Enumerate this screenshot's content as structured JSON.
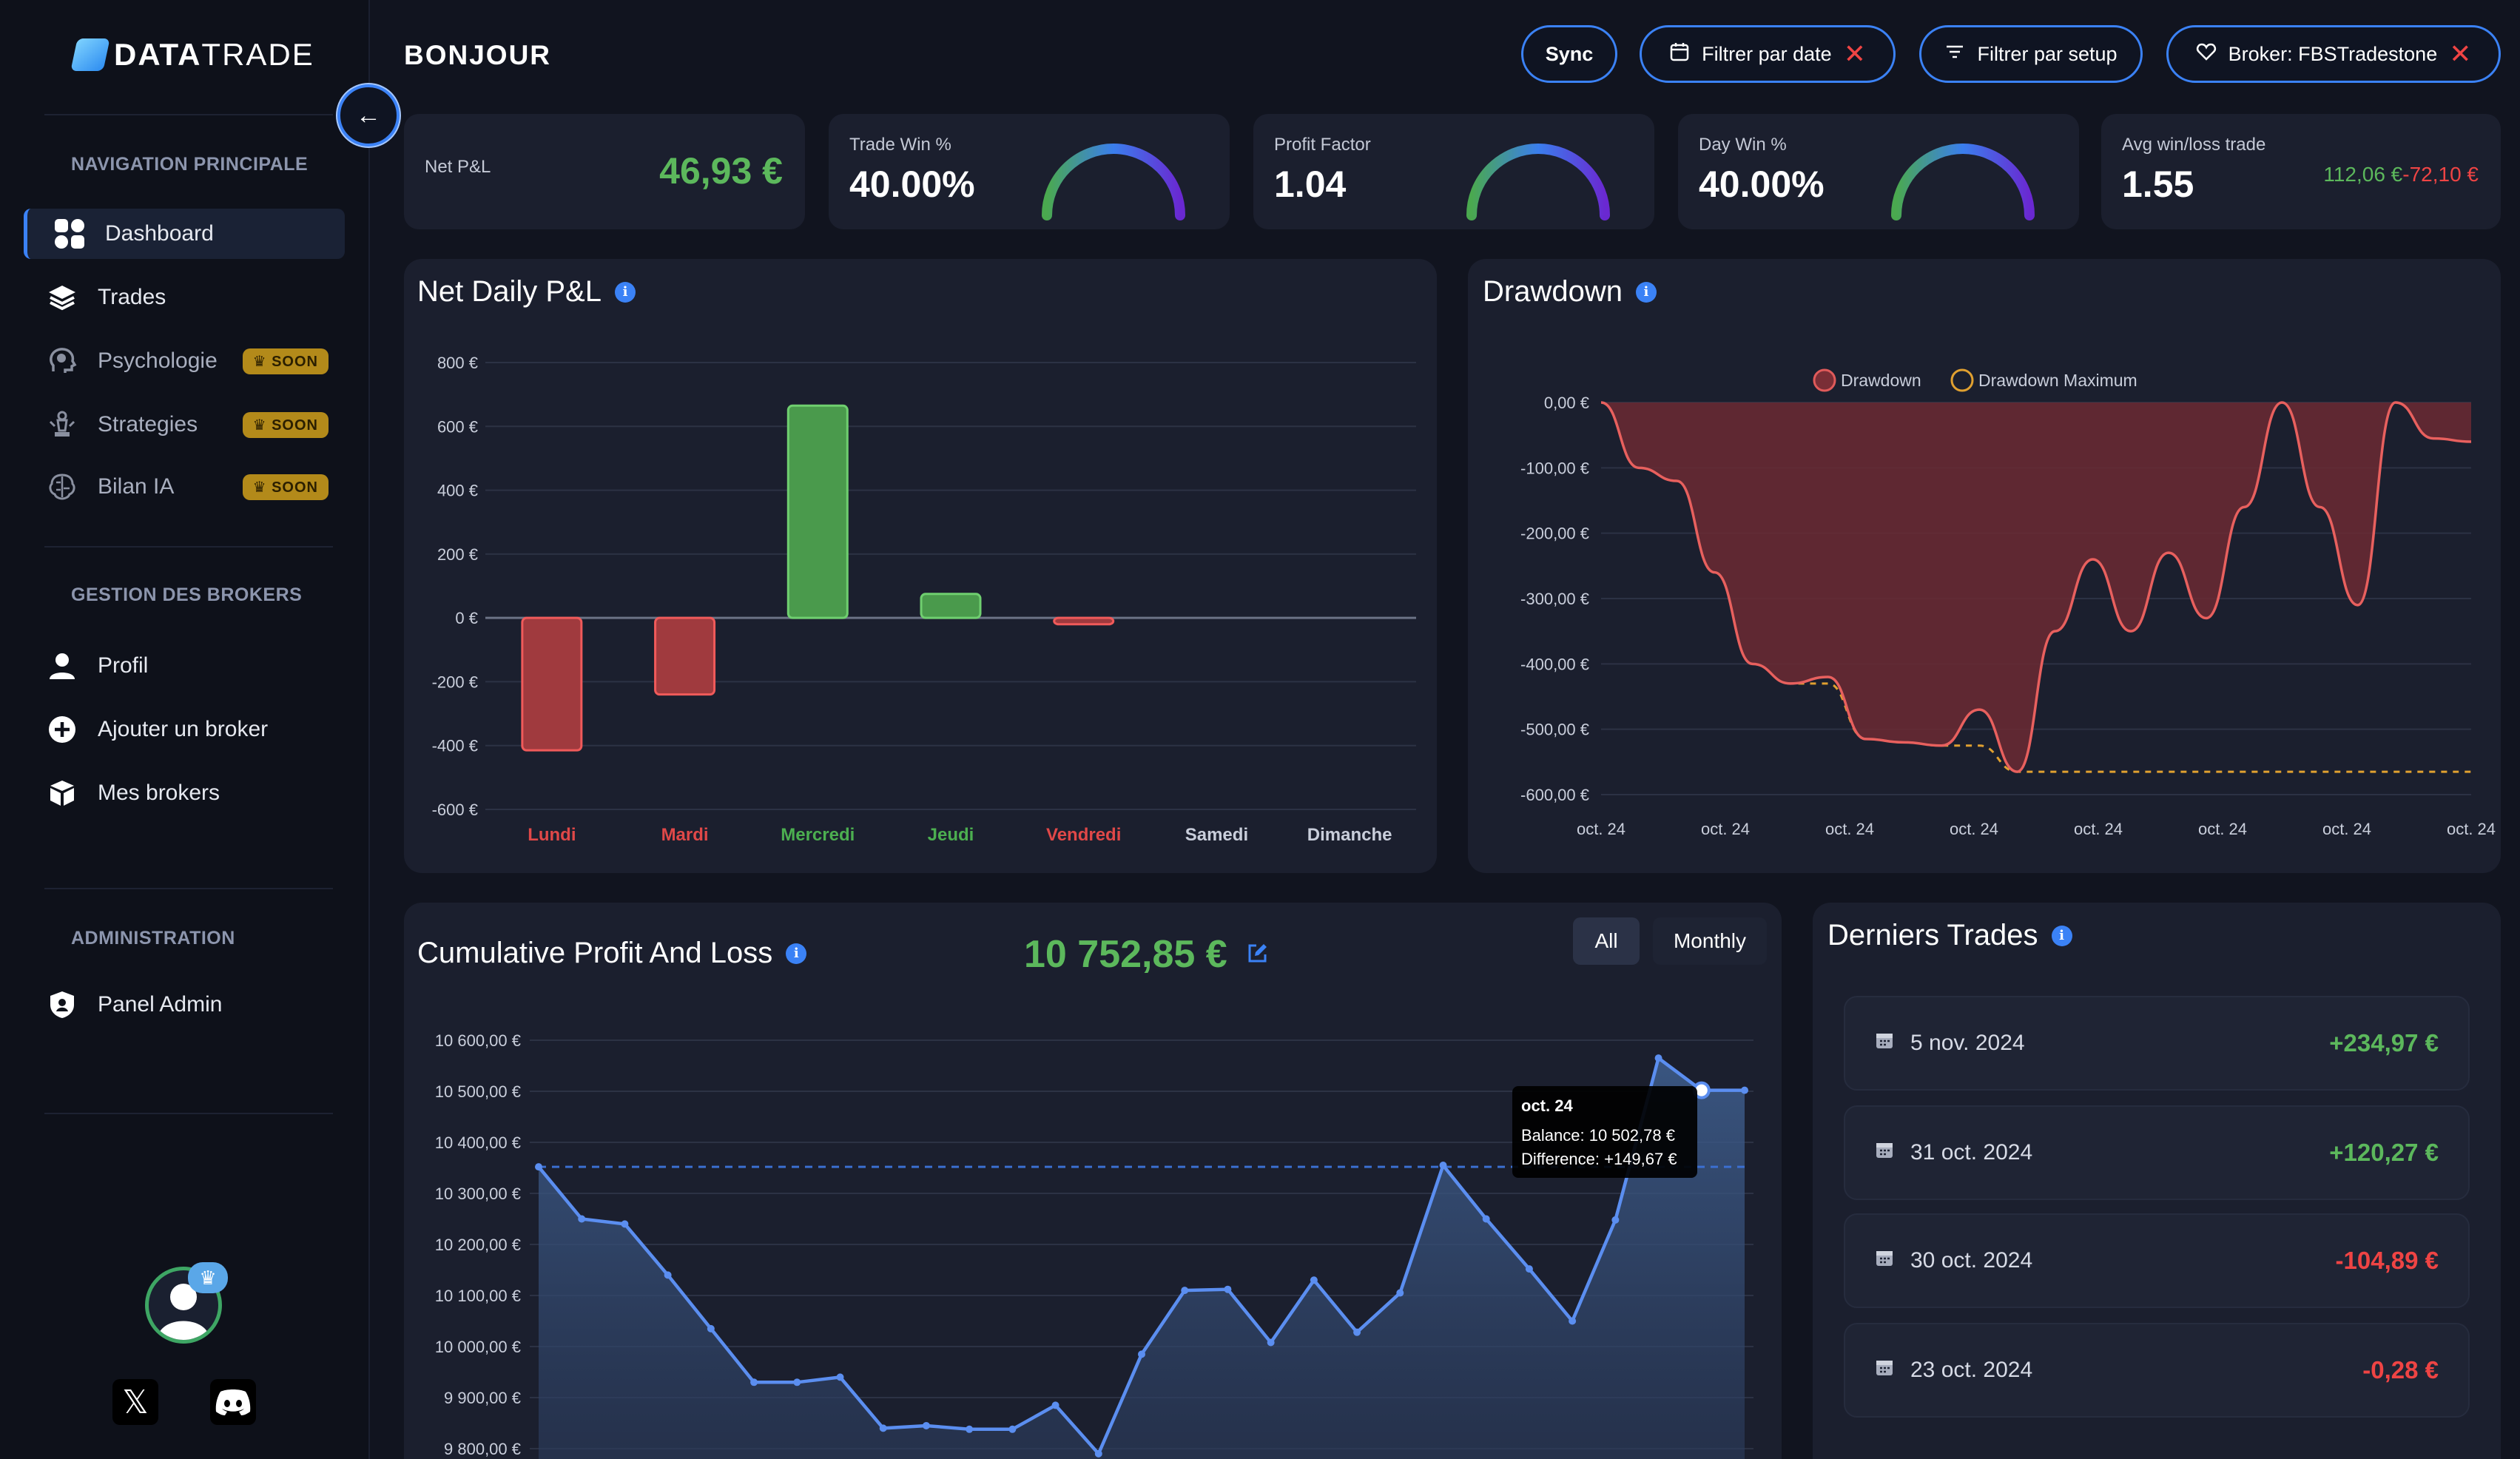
{
  "brand": {
    "name_bold": "DATA",
    "name_light": "TRADE"
  },
  "sidebar": {
    "sections": [
      {
        "title": "NAVIGATION PRINCIPALE"
      },
      {
        "title": "GESTION DES BROKERS"
      },
      {
        "title": "ADMINISTRATION"
      }
    ],
    "nav_main": [
      {
        "label": "Dashboard",
        "icon": "grid-icon",
        "active": true
      },
      {
        "label": "Trades",
        "icon": "layers-icon"
      },
      {
        "label": "Psychologie",
        "icon": "brain-head-icon",
        "badge": "SOON"
      },
      {
        "label": "Strategies",
        "icon": "chess-icon",
        "badge": "SOON"
      },
      {
        "label": "Bilan IA",
        "icon": "ai-brain-icon",
        "badge": "SOON"
      }
    ],
    "nav_brokers": [
      {
        "label": "Profil",
        "icon": "user-icon"
      },
      {
        "label": "Ajouter un broker",
        "icon": "plus-circle-icon"
      },
      {
        "label": "Mes brokers",
        "icon": "box-icon"
      }
    ],
    "nav_admin": [
      {
        "label": "Panel Admin",
        "icon": "shield-icon"
      }
    ],
    "collapse_label": "←"
  },
  "header": {
    "title": "BONJOUR",
    "sync_label": "Sync",
    "filter_date_label": "Filtrer par date",
    "filter_setup_label": "Filtrer par setup",
    "broker_label": "Broker: FBSTradestone"
  },
  "kpis": {
    "net_pnl": {
      "label": "Net P&L",
      "value": "46,93 €"
    },
    "trade_win": {
      "label": "Trade Win %",
      "value": "40.00%",
      "fraction": 0.4
    },
    "profit_factor": {
      "label": "Profit Factor",
      "value": "1.04",
      "fraction": 0.51
    },
    "day_win": {
      "label": "Day Win %",
      "value": "40.00%",
      "fraction": 0.4
    },
    "avg_win_loss": {
      "label": "Avg win/loss trade",
      "value": "1.55",
      "avg_win": "112,06 €",
      "avg_loss": "-72,10 €"
    }
  },
  "colors": {
    "accent": "#3b82f6",
    "profit": "#4caf50",
    "loss": "#ef4444",
    "panel": "#1b1f2e",
    "background": "#11141f"
  },
  "panels": {
    "daily_title": "Net Daily P&L",
    "drawdown_title": "Drawdown",
    "cumulative_title": "Cumulative Profit And Loss",
    "cumulative_total": "10 752,85 €",
    "seg_all": "All",
    "seg_monthly": "Monthly",
    "trades_title": "Derniers Trades"
  },
  "chart_data": [
    {
      "type": "bar",
      "title": "Net Daily P&L",
      "categories": [
        "Lundi",
        "Mardi",
        "Mercredi",
        "Jeudi",
        "Vendredi",
        "Samedi",
        "Dimanche"
      ],
      "values": [
        -415,
        -240,
        665,
        75,
        -20,
        0,
        0
      ],
      "ylim": [
        -600,
        800
      ],
      "yticks": [
        "800 €",
        "600 €",
        "400 €",
        "200 €",
        "0 €",
        "-200 €",
        "-400 €",
        "-600 €"
      ],
      "grid": true
    },
    {
      "type": "area",
      "title": "Drawdown",
      "legend": [
        "Drawdown",
        "Drawdown Maximum"
      ],
      "legend_position": "top",
      "xticks": [
        "oct. 24",
        "oct. 24",
        "oct. 24",
        "oct. 24",
        "oct. 24",
        "oct. 24",
        "oct. 24",
        "oct. 24"
      ],
      "yticks": [
        "0,00 €",
        "-100,00 €",
        "-200,00 €",
        "-300,00 €",
        "-400,00 €",
        "-500,00 €",
        "-600,00 €"
      ],
      "ylim": [
        -600,
        0
      ],
      "series": [
        {
          "name": "Drawdown",
          "values": [
            0,
            -100,
            -120,
            -260,
            -400,
            -430,
            -420,
            -515,
            -520,
            -525,
            -470,
            -565,
            -350,
            -240,
            -350,
            -230,
            -330,
            -160,
            0,
            -160,
            -310,
            0,
            -55,
            -60
          ]
        },
        {
          "name": "Drawdown Maximum",
          "values": [
            0,
            -100,
            -120,
            -260,
            -400,
            -430,
            -430,
            -515,
            -520,
            -525,
            -525,
            -565,
            -565,
            -565,
            -565,
            -565,
            -565,
            -565,
            -565,
            -565,
            -565,
            -565,
            -565,
            -565
          ]
        }
      ]
    },
    {
      "type": "line",
      "title": "Cumulative Profit And Loss",
      "yticks": [
        "10 600,00 €",
        "10 500,00 €",
        "10 400,00 €",
        "10 300,00 €",
        "10 200,00 €",
        "10 100,00 €",
        "10 000,00 €",
        "9 900,00 €",
        "9 800,00 €"
      ],
      "ylim": [
        9800,
        10600
      ],
      "baseline": 10352,
      "values": [
        10352,
        10250,
        10240,
        10140,
        10035,
        9930,
        9930,
        9940,
        9840,
        9845,
        9838,
        9838,
        9885,
        9790,
        9985,
        10110,
        10112,
        10008,
        10130,
        10028,
        10105,
        10355,
        10250,
        10152,
        10050,
        10248,
        10565,
        10502,
        10502
      ],
      "tooltip": {
        "title": "oct. 24",
        "balance": "Balance: 10 502,78 €",
        "difference": "Difference: +149,67 €"
      }
    }
  ],
  "trades": [
    {
      "date": "5 nov. 2024",
      "amount": "+234,97 €",
      "positive": true
    },
    {
      "date": "31 oct. 2024",
      "amount": "+120,27 €",
      "positive": true
    },
    {
      "date": "30 oct. 2024",
      "amount": "-104,89 €",
      "positive": false
    },
    {
      "date": "23 oct. 2024",
      "amount": "-0,28 €",
      "positive": false
    }
  ]
}
